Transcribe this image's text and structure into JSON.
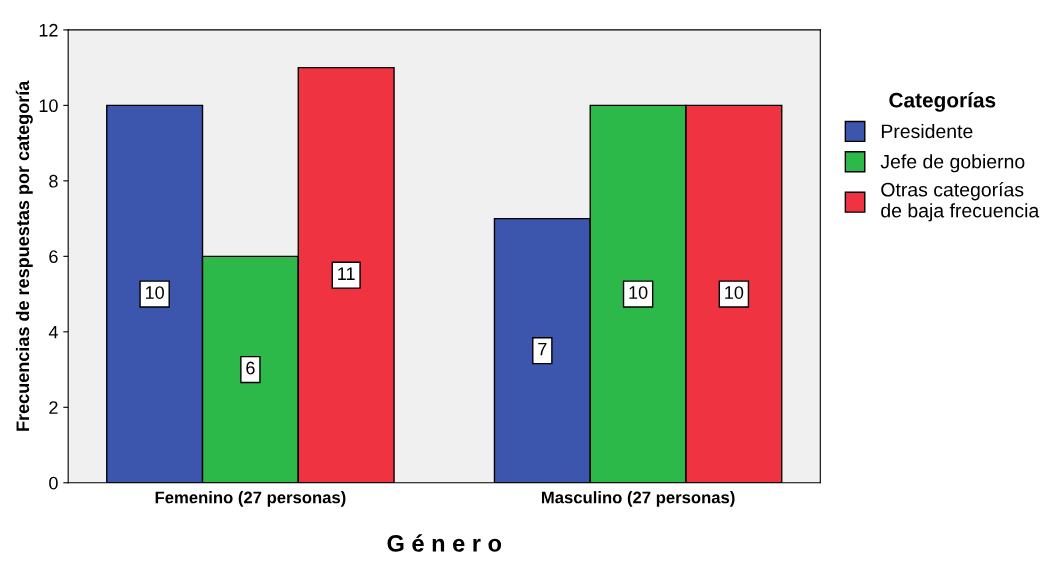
{
  "chart_data": {
    "type": "bar",
    "xlabel": "G é n e r o",
    "ylabel": "Frecuencias de respuestas por categoría",
    "legend_title": "Categorías",
    "categories": [
      "Femenino (27 personas)",
      "Masculino (27 personas)"
    ],
    "series": [
      {
        "name": "Presidente",
        "color": "#3d56ad",
        "values": [
          10,
          7
        ]
      },
      {
        "name": "Jefe de gobierno",
        "color": "#2db84a",
        "values": [
          6,
          10
        ]
      },
      {
        "name": "Otras categorías\nde baja frecuencia",
        "color": "#ef3340",
        "values": [
          11,
          10
        ]
      }
    ],
    "ylim": [
      0,
      12
    ],
    "yticks": [
      0,
      2,
      4,
      6,
      8,
      10,
      12
    ],
    "grid": false,
    "legend": "right",
    "data_labels": true
  }
}
